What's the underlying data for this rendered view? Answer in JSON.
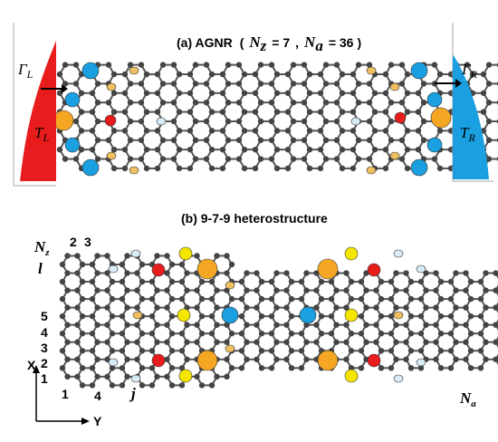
{
  "panel_a": {
    "label": "(a) AGNR",
    "open": "(",
    "sep": ",",
    "close": ")",
    "params": [
      {
        "symbol": "N",
        "sub": "z",
        "text": "= 7"
      },
      {
        "symbol": "N",
        "sub": "a",
        "text": "= 36"
      }
    ],
    "gamma_left": {
      "symbol": "Γ",
      "sub": "L"
    },
    "t_left": {
      "symbol": "T",
      "sub": "L"
    },
    "gamma_right": {
      "symbol": "Γ",
      "sub": "R"
    },
    "t_right": {
      "symbol": "T",
      "sub": "R"
    }
  },
  "panel_b": {
    "label": "(b) 9-7-9  heterostructure",
    "nz": {
      "symbol": "N",
      "sub": "z"
    },
    "l": "l",
    "top_numbers": [
      "2",
      "3"
    ],
    "row_numbers": [
      "5",
      "4",
      "3",
      "2",
      "1"
    ],
    "bottom_numbers": [
      "1",
      "4"
    ],
    "j": "j",
    "na": {
      "symbol": "N",
      "sub": "a"
    },
    "axis_x": "X",
    "axis_y": "Y"
  }
}
